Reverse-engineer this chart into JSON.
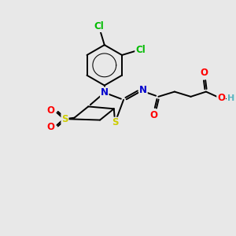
{
  "bg_color": "#e8e8e8",
  "atom_colors": {
    "C": "#000000",
    "N": "#0000cd",
    "O": "#ff0000",
    "S": "#cccc00",
    "Cl": "#00bb00",
    "H": "#5ab4c0"
  },
  "bond_color": "#000000",
  "figsize": [
    3.0,
    3.0
  ],
  "dpi": 100,
  "lw": 1.4,
  "fs": 8.5,
  "dbo": 0.055
}
